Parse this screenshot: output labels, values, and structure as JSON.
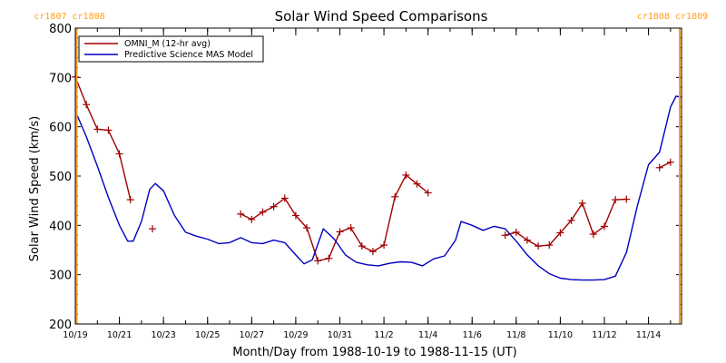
{
  "chart_data": {
    "type": "line",
    "title": "Solar Wind Speed Comparisons",
    "xlabel": "Month/Day from 1988-10-19 to 1988-11-15 (UT)",
    "ylabel": "Solar Wind Speed (km/s)",
    "xlim": [
      "1988-10-19 00:00",
      "1988-11-15 12:00"
    ],
    "ylim": [
      200,
      800
    ],
    "yticks": [
      200,
      300,
      400,
      500,
      600,
      700,
      800
    ],
    "xtick_labels": [
      "10/19",
      "10/21",
      "10/23",
      "10/25",
      "10/27",
      "10/29",
      "10/31",
      "11/2",
      "11/4",
      "11/6",
      "11/8",
      "11/10",
      "11/12",
      "11/14"
    ],
    "xtick_dates": [
      "1988-10-19",
      "1988-10-21",
      "1988-10-23",
      "1988-10-25",
      "1988-10-27",
      "1988-10-29",
      "1988-10-31",
      "1988-11-02",
      "1988-11-04",
      "1988-11-06",
      "1988-11-08",
      "1988-11-10",
      "1988-11-12",
      "1988-11-14"
    ],
    "legend_position": "top-left",
    "carrington_markers": [
      {
        "date": "1988-10-19 00:00",
        "label": "cr1807 cr1808",
        "color": "#ffa020"
      },
      {
        "date": "1988-11-15 12:00",
        "label": "cr1808 cr1809",
        "color": "#ffa020"
      }
    ],
    "series": [
      {
        "name": "OMNI_M (12-hr avg)",
        "color": "#a00000",
        "marker": "+",
        "points": [
          [
            "1988-10-19 00:00",
            701
          ],
          [
            "1988-10-19 12:00",
            645
          ],
          [
            "1988-10-20 00:00",
            595
          ],
          [
            "1988-10-20 12:00",
            593
          ],
          [
            "1988-10-21 00:00",
            545
          ],
          [
            "1988-10-21 12:00",
            452
          ],
          null,
          [
            "1988-10-22 12:00",
            393
          ],
          null,
          [
            "1988-10-26 12:00",
            423
          ],
          [
            "1988-10-27 00:00",
            412
          ],
          [
            "1988-10-27 12:00",
            427
          ],
          [
            "1988-10-28 00:00",
            438
          ],
          [
            "1988-10-28 12:00",
            455
          ],
          [
            "1988-10-29 00:00",
            420
          ],
          [
            "1988-10-29 12:00",
            395
          ],
          [
            "1988-10-30 00:00",
            328
          ],
          [
            "1988-10-30 12:00",
            333
          ],
          [
            "1988-10-31 00:00",
            387
          ],
          [
            "1988-10-31 12:00",
            395
          ],
          [
            "1988-11-01 00:00",
            358
          ],
          [
            "1988-11-01 12:00",
            347
          ],
          [
            "1988-11-02 00:00",
            360
          ],
          [
            "1988-11-02 12:00",
            458
          ],
          [
            "1988-11-03 00:00",
            502
          ],
          [
            "1988-11-03 12:00",
            484
          ],
          [
            "1988-11-04 00:00",
            466
          ],
          null,
          [
            "1988-11-07 12:00",
            380
          ],
          [
            "1988-11-08 00:00",
            386
          ],
          [
            "1988-11-08 12:00",
            370
          ],
          [
            "1988-11-09 00:00",
            358
          ],
          [
            "1988-11-09 12:00",
            360
          ],
          [
            "1988-11-10 00:00",
            385
          ],
          [
            "1988-11-10 12:00",
            410
          ],
          [
            "1988-11-11 00:00",
            445
          ],
          [
            "1988-11-11 12:00",
            382
          ],
          [
            "1988-11-12 00:00",
            398
          ],
          [
            "1988-11-12 12:00",
            452
          ],
          [
            "1988-11-13 00:00",
            453
          ],
          null,
          [
            "1988-11-14 12:00",
            517
          ],
          [
            "1988-11-15 00:00",
            528
          ]
        ]
      },
      {
        "name": "Predictive Science MAS Model",
        "color": "#0000c0",
        "marker": "none",
        "points": [
          [
            "1988-10-19 00:00",
            632
          ],
          [
            "1988-10-19 12:00",
            580
          ],
          [
            "1988-10-20 00:00",
            520
          ],
          [
            "1988-10-20 12:00",
            457
          ],
          [
            "1988-10-21 00:00",
            400
          ],
          [
            "1988-10-21 09:00",
            368
          ],
          [
            "1988-10-21 15:00",
            368
          ],
          [
            "1988-10-22 00:00",
            408
          ],
          [
            "1988-10-22 09:00",
            473
          ],
          [
            "1988-10-22 15:00",
            485
          ],
          [
            "1988-10-23 00:00",
            470
          ],
          [
            "1988-10-23 12:00",
            420
          ],
          [
            "1988-10-24 00:00",
            386
          ],
          [
            "1988-10-24 12:00",
            378
          ],
          [
            "1988-10-25 00:00",
            372
          ],
          [
            "1988-10-25 12:00",
            363
          ],
          [
            "1988-10-26 00:00",
            365
          ],
          [
            "1988-10-26 12:00",
            375
          ],
          [
            "1988-10-27 00:00",
            365
          ],
          [
            "1988-10-27 12:00",
            363
          ],
          [
            "1988-10-28 00:00",
            370
          ],
          [
            "1988-10-28 12:00",
            365
          ],
          [
            "1988-10-29 00:00",
            340
          ],
          [
            "1988-10-29 09:00",
            322
          ],
          [
            "1988-10-29 18:00",
            330
          ],
          [
            "1988-10-30 06:00",
            393
          ],
          [
            "1988-10-30 18:00",
            372
          ],
          [
            "1988-10-31 06:00",
            340
          ],
          [
            "1988-10-31 18:00",
            325
          ],
          [
            "1988-11-01 06:00",
            320
          ],
          [
            "1988-11-01 18:00",
            318
          ],
          [
            "1988-11-02 06:00",
            323
          ],
          [
            "1988-11-02 18:00",
            326
          ],
          [
            "1988-11-03 06:00",
            325
          ],
          [
            "1988-11-03 18:00",
            318
          ],
          [
            "1988-11-04 06:00",
            332
          ],
          [
            "1988-11-04 18:00",
            338
          ],
          [
            "1988-11-05 06:00",
            370
          ],
          [
            "1988-11-05 12:00",
            408
          ],
          [
            "1988-11-06 00:00",
            400
          ],
          [
            "1988-11-06 12:00",
            390
          ],
          [
            "1988-11-07 00:00",
            398
          ],
          [
            "1988-11-07 12:00",
            393
          ],
          [
            "1988-11-08 00:00",
            368
          ],
          [
            "1988-11-08 12:00",
            340
          ],
          [
            "1988-11-09 00:00",
            318
          ],
          [
            "1988-11-09 12:00",
            302
          ],
          [
            "1988-11-10 00:00",
            293
          ],
          [
            "1988-11-10 12:00",
            290
          ],
          [
            "1988-11-11 00:00",
            289
          ],
          [
            "1988-11-11 12:00",
            289
          ],
          [
            "1988-11-12 00:00",
            290
          ],
          [
            "1988-11-12 12:00",
            297
          ],
          [
            "1988-11-13 00:00",
            345
          ],
          [
            "1988-11-13 12:00",
            440
          ],
          [
            "1988-11-14 00:00",
            523
          ],
          [
            "1988-11-14 12:00",
            548
          ],
          [
            "1988-11-15 00:00",
            640
          ],
          [
            "1988-11-15 06:00",
            662
          ],
          [
            "1988-11-15 12:00",
            660
          ]
        ]
      }
    ]
  }
}
